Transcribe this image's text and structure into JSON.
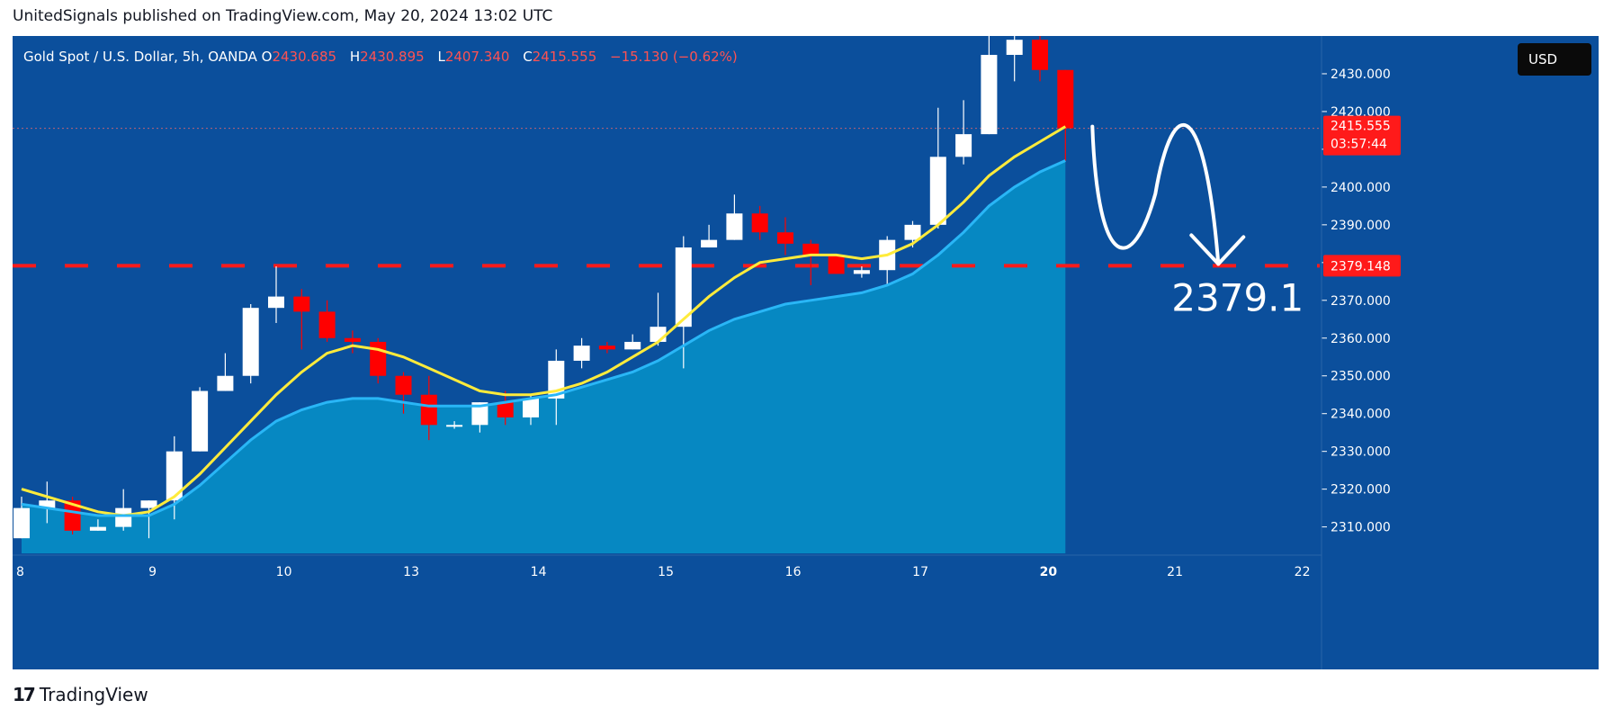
{
  "header": {
    "text": "UnitedSignals published on TradingView.com, May 20, 2024 13:02 UTC"
  },
  "legend": {
    "symbol": "Gold Spot / U.S. Dollar, 5h, OANDA",
    "o_label": "O",
    "o_value": "2430.685",
    "h_label": "H",
    "h_value": "2430.895",
    "l_label": "L",
    "l_value": "2407.340",
    "c_label": "C",
    "c_value": "2415.555",
    "change": "−15.130 (−0.62%)"
  },
  "currency_button": "USD",
  "last_price_label": {
    "price": "2415.555",
    "countdown": "03:57:44"
  },
  "level_label": "2379.148",
  "target_annotation": "2379.1",
  "footer": {
    "logo": "17",
    "brand": "TradingView"
  },
  "colors": {
    "background": "#0b4f9c",
    "up": "#ffffff",
    "down": "#ff0000",
    "ma_fast": "#ffeb3b",
    "ma_slow": "#29b6f6",
    "level_line": "#ff1a1a"
  },
  "chart_data": {
    "type": "candlestick",
    "title": "Gold Spot / U.S. Dollar, 5h, OANDA",
    "ylim": [
      2303,
      2440
    ],
    "y_ticks": [
      "2310.000",
      "2320.000",
      "2330.000",
      "2340.000",
      "2350.000",
      "2360.000",
      "2370.000",
      "2380.000",
      "2390.000",
      "2400.000",
      "2410.000",
      "2420.000",
      "2430.000"
    ],
    "x_tick_labels": [
      "8",
      "9",
      "10",
      "13",
      "14",
      "15",
      "16",
      "17",
      "20",
      "21",
      "22"
    ],
    "horizontal_level": 2379.148,
    "last_price": 2415.555,
    "candles": [
      {
        "o": 2307,
        "h": 2318,
        "l": 2307,
        "c": 2315
      },
      {
        "o": 2315,
        "h": 2322,
        "l": 2311,
        "c": 2317
      },
      {
        "o": 2317,
        "h": 2318,
        "l": 2308,
        "c": 2309
      },
      {
        "o": 2309,
        "h": 2312,
        "l": 2309,
        "c": 2310
      },
      {
        "o": 2310,
        "h": 2320,
        "l": 2309,
        "c": 2315
      },
      {
        "o": 2315,
        "h": 2317,
        "l": 2307,
        "c": 2317
      },
      {
        "o": 2317,
        "h": 2334,
        "l": 2312,
        "c": 2330
      },
      {
        "o": 2330,
        "h": 2347,
        "l": 2330,
        "c": 2346
      },
      {
        "o": 2346,
        "h": 2356,
        "l": 2346,
        "c": 2350
      },
      {
        "o": 2350,
        "h": 2369,
        "l": 2348,
        "c": 2368
      },
      {
        "o": 2368,
        "h": 2379,
        "l": 2364,
        "c": 2371
      },
      {
        "o": 2371,
        "h": 2373,
        "l": 2357,
        "c": 2367
      },
      {
        "o": 2367,
        "h": 2370,
        "l": 2359,
        "c": 2360
      },
      {
        "o": 2360,
        "h": 2362,
        "l": 2356,
        "c": 2359
      },
      {
        "o": 2359,
        "h": 2360,
        "l": 2348,
        "c": 2350
      },
      {
        "o": 2350,
        "h": 2351,
        "l": 2340,
        "c": 2345
      },
      {
        "o": 2345,
        "h": 2350,
        "l": 2333,
        "c": 2337
      },
      {
        "o": 2337,
        "h": 2338,
        "l": 2336,
        "c": 2337
      },
      {
        "o": 2337,
        "h": 2343,
        "l": 2335,
        "c": 2343
      },
      {
        "o": 2343,
        "h": 2346,
        "l": 2337,
        "c": 2339
      },
      {
        "o": 2339,
        "h": 2345,
        "l": 2337,
        "c": 2344
      },
      {
        "o": 2344,
        "h": 2357,
        "l": 2337,
        "c": 2354
      },
      {
        "o": 2354,
        "h": 2360,
        "l": 2352,
        "c": 2358
      },
      {
        "o": 2358,
        "h": 2359,
        "l": 2356,
        "c": 2357
      },
      {
        "o": 2357,
        "h": 2361,
        "l": 2357,
        "c": 2359
      },
      {
        "o": 2359,
        "h": 2372,
        "l": 2358,
        "c": 2363
      },
      {
        "o": 2363,
        "h": 2387,
        "l": 2352,
        "c": 2384
      },
      {
        "o": 2384,
        "h": 2390,
        "l": 2384,
        "c": 2386
      },
      {
        "o": 2386,
        "h": 2398,
        "l": 2386,
        "c": 2393
      },
      {
        "o": 2393,
        "h": 2395,
        "l": 2386,
        "c": 2388
      },
      {
        "o": 2388,
        "h": 2392,
        "l": 2382,
        "c": 2385
      },
      {
        "o": 2385,
        "h": 2386,
        "l": 2374,
        "c": 2382
      },
      {
        "o": 2382,
        "h": 2382,
        "l": 2377,
        "c": 2377
      },
      {
        "o": 2377,
        "h": 2379,
        "l": 2376,
        "c": 2378
      },
      {
        "o": 2378,
        "h": 2387,
        "l": 2374,
        "c": 2386
      },
      {
        "o": 2386,
        "h": 2391,
        "l": 2384,
        "c": 2390
      },
      {
        "o": 2390,
        "h": 2421,
        "l": 2389,
        "c": 2408
      },
      {
        "o": 2408,
        "h": 2423,
        "l": 2406,
        "c": 2414
      },
      {
        "o": 2414,
        "h": 2440,
        "l": 2414,
        "c": 2435
      },
      {
        "o": 2435,
        "h": 2442,
        "l": 2428,
        "c": 2439
      },
      {
        "o": 2439,
        "h": 2441,
        "l": 2428,
        "c": 2431
      },
      {
        "o": 2431,
        "h": 2431,
        "l": 2407,
        "c": 2415.555
      }
    ],
    "series": [
      {
        "name": "",
        "values": [
          2320,
          2318,
          2316,
          2314,
          2313,
          2314,
          2318,
          2324,
          2331,
          2338,
          2345,
          2351,
          2356,
          2358,
          2357,
          2355,
          2352,
          2349,
          2346,
          2345,
          2345,
          2346,
          2348,
          2351,
          2355,
          2359,
          2365,
          2371,
          2376,
          2380,
          2381,
          2382,
          2382,
          2381,
          2382,
          2385,
          2390,
          2396,
          2403,
          2408,
          2412,
          2416
        ]
      },
      {
        "name": "",
        "values": [
          2316,
          2315,
          2314,
          2313,
          2313,
          2313,
          2316,
          2321,
          2327,
          2333,
          2338,
          2341,
          2343,
          2344,
          2344,
          2343,
          2342,
          2342,
          2342,
          2343,
          2344,
          2345,
          2347,
          2349,
          2351,
          2354,
          2358,
          2362,
          2365,
          2367,
          2369,
          2370,
          2371,
          2372,
          2374,
          2377,
          2382,
          2388,
          2395,
          2400,
          2404,
          2407
        ]
      }
    ]
  }
}
